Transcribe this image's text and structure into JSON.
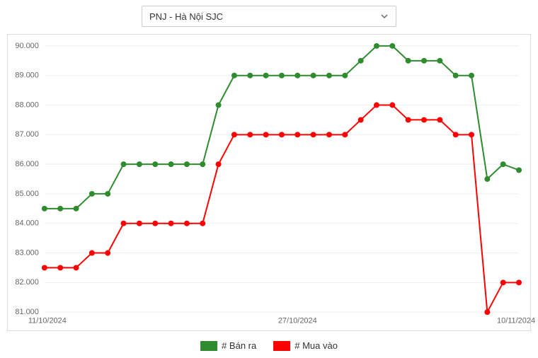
{
  "dropdown": {
    "selected": "PNJ - Hà Nội SJC"
  },
  "chart": {
    "type": "line",
    "background_color": "#ffffff",
    "grid_color": "#eeeeee",
    "border_color": "#dddddd",
    "axis_label_color": "#666666",
    "axis_fontsize": 11,
    "ylim": [
      81,
      90
    ],
    "ytick_step": 1,
    "ytick_labels": [
      "81.000",
      "82.000",
      "83.000",
      "84.000",
      "85.000",
      "86.000",
      "87.000",
      "88.000",
      "89.000",
      "90.000"
    ],
    "xtick_indices": [
      0,
      16,
      30
    ],
    "xtick_labels": [
      "11/10/2024",
      "27/10/2024",
      "10/11/2024"
    ],
    "n_points": 31,
    "series": [
      {
        "name": "ban_ra",
        "label": "# Bán ra",
        "color": "#2e8b2e",
        "line_width": 2,
        "marker": "circle",
        "marker_size": 4,
        "values": [
          84.5,
          84.5,
          84.5,
          85.0,
          85.0,
          86.0,
          86.0,
          86.0,
          86.0,
          86.0,
          86.0,
          88.0,
          89.0,
          89.0,
          89.0,
          89.0,
          89.0,
          89.0,
          89.0,
          89.0,
          89.5,
          90.0,
          90.0,
          89.5,
          89.5,
          89.5,
          89.0,
          89.0,
          85.5,
          86.0,
          85.8
        ]
      },
      {
        "name": "mua_vao",
        "label": "# Mua vào",
        "color": "#ff0000",
        "line_width": 2,
        "marker": "circle",
        "marker_size": 4,
        "values": [
          82.5,
          82.5,
          82.5,
          83.0,
          83.0,
          84.0,
          84.0,
          84.0,
          84.0,
          84.0,
          84.0,
          86.0,
          87.0,
          87.0,
          87.0,
          87.0,
          87.0,
          87.0,
          87.0,
          87.0,
          87.5,
          88.0,
          88.0,
          87.5,
          87.5,
          87.5,
          87.0,
          87.0,
          81.0,
          82.0,
          82.0
        ]
      }
    ]
  },
  "legend": {
    "items": [
      {
        "label": "# Bán ra",
        "color": "#2e8b2e"
      },
      {
        "label": "# Mua vào",
        "color": "#ff0000"
      }
    ]
  }
}
